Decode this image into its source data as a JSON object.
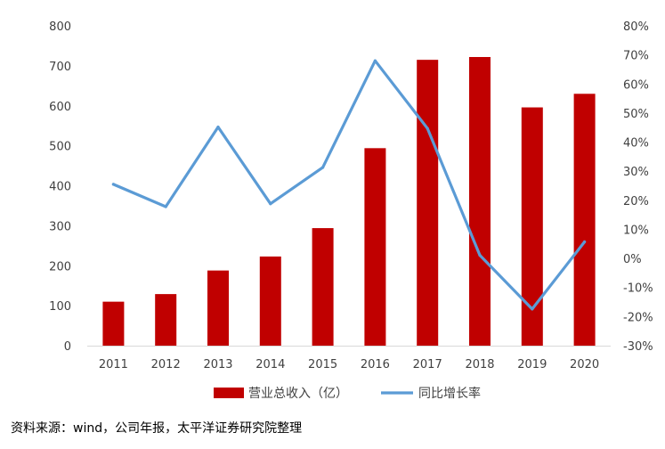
{
  "chart_data": {
    "type": "bar+line",
    "categories": [
      "2011",
      "2012",
      "2013",
      "2014",
      "2015",
      "2016",
      "2017",
      "2018",
      "2019",
      "2020"
    ],
    "series": [
      {
        "name": "营业总收入（亿）",
        "type": "bar",
        "axis": "left",
        "color": "#C00000",
        "values": [
          110,
          129,
          188,
          223,
          294,
          494,
          715,
          722,
          596,
          630
        ]
      },
      {
        "name": "同比增长率",
        "type": "line",
        "axis": "right",
        "color": "#5B9BD5",
        "values": [
          25.5,
          17.8,
          45.2,
          18.8,
          31.3,
          68.0,
          44.7,
          1.1,
          -17.4,
          5.7
        ]
      }
    ],
    "left_axis": {
      "ylim": [
        0,
        800
      ],
      "ticks": [
        0,
        100,
        200,
        300,
        400,
        500,
        600,
        700,
        800
      ],
      "tick_labels": [
        "0",
        "100",
        "200",
        "300",
        "400",
        "500",
        "600",
        "700",
        "800"
      ]
    },
    "right_axis": {
      "ylim": [
        -30,
        80
      ],
      "ticks": [
        -30,
        -20,
        -10,
        0,
        10,
        20,
        30,
        40,
        50,
        60,
        70,
        80
      ],
      "tick_labels": [
        "-30%",
        "-20%",
        "-10%",
        "0%",
        "10%",
        "20%",
        "30%",
        "40%",
        "50%",
        "60%",
        "70%",
        "80%"
      ]
    },
    "grid": false,
    "legend_position": "bottom"
  },
  "source_note": "资料来源：wind，公司年报，太平洋证券研究院整理"
}
